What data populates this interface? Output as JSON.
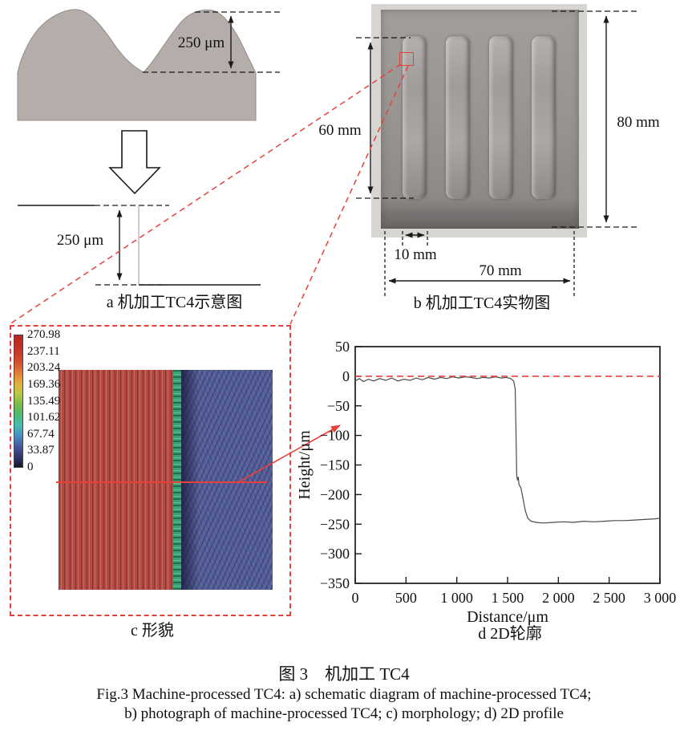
{
  "figure": {
    "caption_zh": "图 3　机加工 TC4",
    "caption_en_line1": "Fig.3 Machine-processed TC4: a) schematic diagram of machine-processed TC4;",
    "caption_en_line2": "b) photograph of machine-processed TC4; c) morphology; d) 2D profile"
  },
  "panel_a": {
    "caption": "a 机加工TC4示意图",
    "peak_height_label": "250 μm",
    "step_depth_label": "250 μm"
  },
  "panel_b": {
    "caption": "b 机加工TC4实物图",
    "ridge_length_label": "60 mm",
    "plate_height_label": "80 mm",
    "ridge_width_label": "10 mm",
    "plate_width_label": "70 mm"
  },
  "panel_c": {
    "caption": "c 形貌",
    "colorbar_labels": [
      "270.98",
      "237.11",
      "203.24",
      "169.36",
      "135.49",
      "101.62",
      "67.74",
      "33.87",
      "0"
    ]
  },
  "panel_d": {
    "caption": "d 2D轮廓"
  },
  "chart_data": {
    "type": "line",
    "title": "",
    "xlabel": "Distance/μm",
    "ylabel": "Height/μm",
    "xlim": [
      0,
      3000
    ],
    "ylim": [
      -350,
      50
    ],
    "x_ticks": [
      0,
      500,
      1000,
      1500,
      2000,
      2500,
      3000
    ],
    "x_tick_labels": [
      "0",
      "500",
      "1 000",
      "1 500",
      "2 000",
      "2 500",
      "3 000"
    ],
    "y_ticks": [
      50,
      0,
      -50,
      -100,
      -150,
      -200,
      -250,
      -300,
      -350
    ],
    "grid": false,
    "legend": null,
    "series": [
      {
        "name": "surface-profile",
        "color": "#4a4a4a",
        "dash": false,
        "points": [
          [
            0,
            -8
          ],
          [
            40,
            -4
          ],
          [
            80,
            -9
          ],
          [
            130,
            -5
          ],
          [
            180,
            -8
          ],
          [
            240,
            -4
          ],
          [
            300,
            -7
          ],
          [
            360,
            -3
          ],
          [
            420,
            -8
          ],
          [
            480,
            -5
          ],
          [
            540,
            -7
          ],
          [
            600,
            -3
          ],
          [
            660,
            -6
          ],
          [
            720,
            -2
          ],
          [
            780,
            -5
          ],
          [
            840,
            -2
          ],
          [
            900,
            -4
          ],
          [
            960,
            -1
          ],
          [
            1020,
            -3
          ],
          [
            1080,
            -1
          ],
          [
            1140,
            -2
          ],
          [
            1200,
            -4
          ],
          [
            1260,
            -2
          ],
          [
            1320,
            -3
          ],
          [
            1380,
            -1
          ],
          [
            1440,
            -3
          ],
          [
            1490,
            -2
          ],
          [
            1530,
            -4
          ],
          [
            1560,
            -8
          ],
          [
            1575,
            -22
          ],
          [
            1583,
            -95
          ],
          [
            1590,
            -168
          ],
          [
            1598,
            -176
          ],
          [
            1605,
            -170
          ],
          [
            1612,
            -183
          ],
          [
            1630,
            -188
          ],
          [
            1650,
            -205
          ],
          [
            1675,
            -228
          ],
          [
            1700,
            -240
          ],
          [
            1730,
            -245
          ],
          [
            1780,
            -247
          ],
          [
            1850,
            -248
          ],
          [
            1950,
            -247
          ],
          [
            2050,
            -246
          ],
          [
            2150,
            -247
          ],
          [
            2250,
            -245
          ],
          [
            2350,
            -246
          ],
          [
            2450,
            -245
          ],
          [
            2550,
            -244
          ],
          [
            2650,
            -244
          ],
          [
            2750,
            -243
          ],
          [
            2850,
            -242
          ],
          [
            2950,
            -241
          ],
          [
            3000,
            -240
          ]
        ]
      },
      {
        "name": "zero-reference",
        "color": "#e8413c",
        "dash": true,
        "points": [
          [
            0,
            0
          ],
          [
            3000,
            0
          ]
        ]
      }
    ]
  },
  "colors": {
    "accent_red": "#e8413c",
    "schematic_gray": "#b4ada9",
    "plate_gray": "#999593",
    "morph_red": "#b14a42",
    "morph_green": "#37a173",
    "morph_blue": "#545e97",
    "curve": "#4a4a4a"
  }
}
